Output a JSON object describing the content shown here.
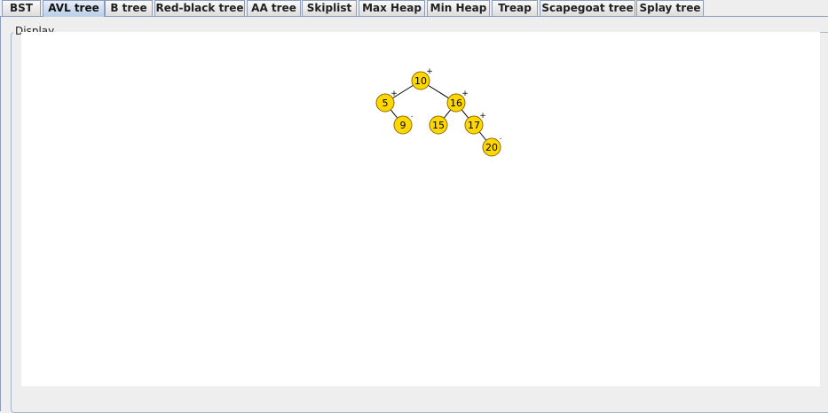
{
  "tabs": [
    {
      "label": "BST",
      "active": false
    },
    {
      "label": "AVL tree",
      "active": true
    },
    {
      "label": "B tree",
      "active": false
    },
    {
      "label": "Red-black tree",
      "active": false
    },
    {
      "label": "AA tree",
      "active": false
    },
    {
      "label": "Skiplist",
      "active": false
    },
    {
      "label": "Max Heap",
      "active": false
    },
    {
      "label": "Min Heap",
      "active": false
    },
    {
      "label": "Treap",
      "active": false
    },
    {
      "label": "Scapegoat tree",
      "active": false
    },
    {
      "label": "Splay tree",
      "active": false
    }
  ],
  "display": {
    "title": "Display"
  },
  "tree": {
    "node_color": "#ffd700",
    "node_border_color": "#8a6d00",
    "nodes": [
      {
        "key": "10",
        "balance": "+"
      },
      {
        "key": "5",
        "balance": "+"
      },
      {
        "key": "9",
        "balance": "."
      },
      {
        "key": "16",
        "balance": "+"
      },
      {
        "key": "15",
        "balance": ""
      },
      {
        "key": "17",
        "balance": "+"
      },
      {
        "key": "20",
        "balance": "."
      }
    ]
  }
}
